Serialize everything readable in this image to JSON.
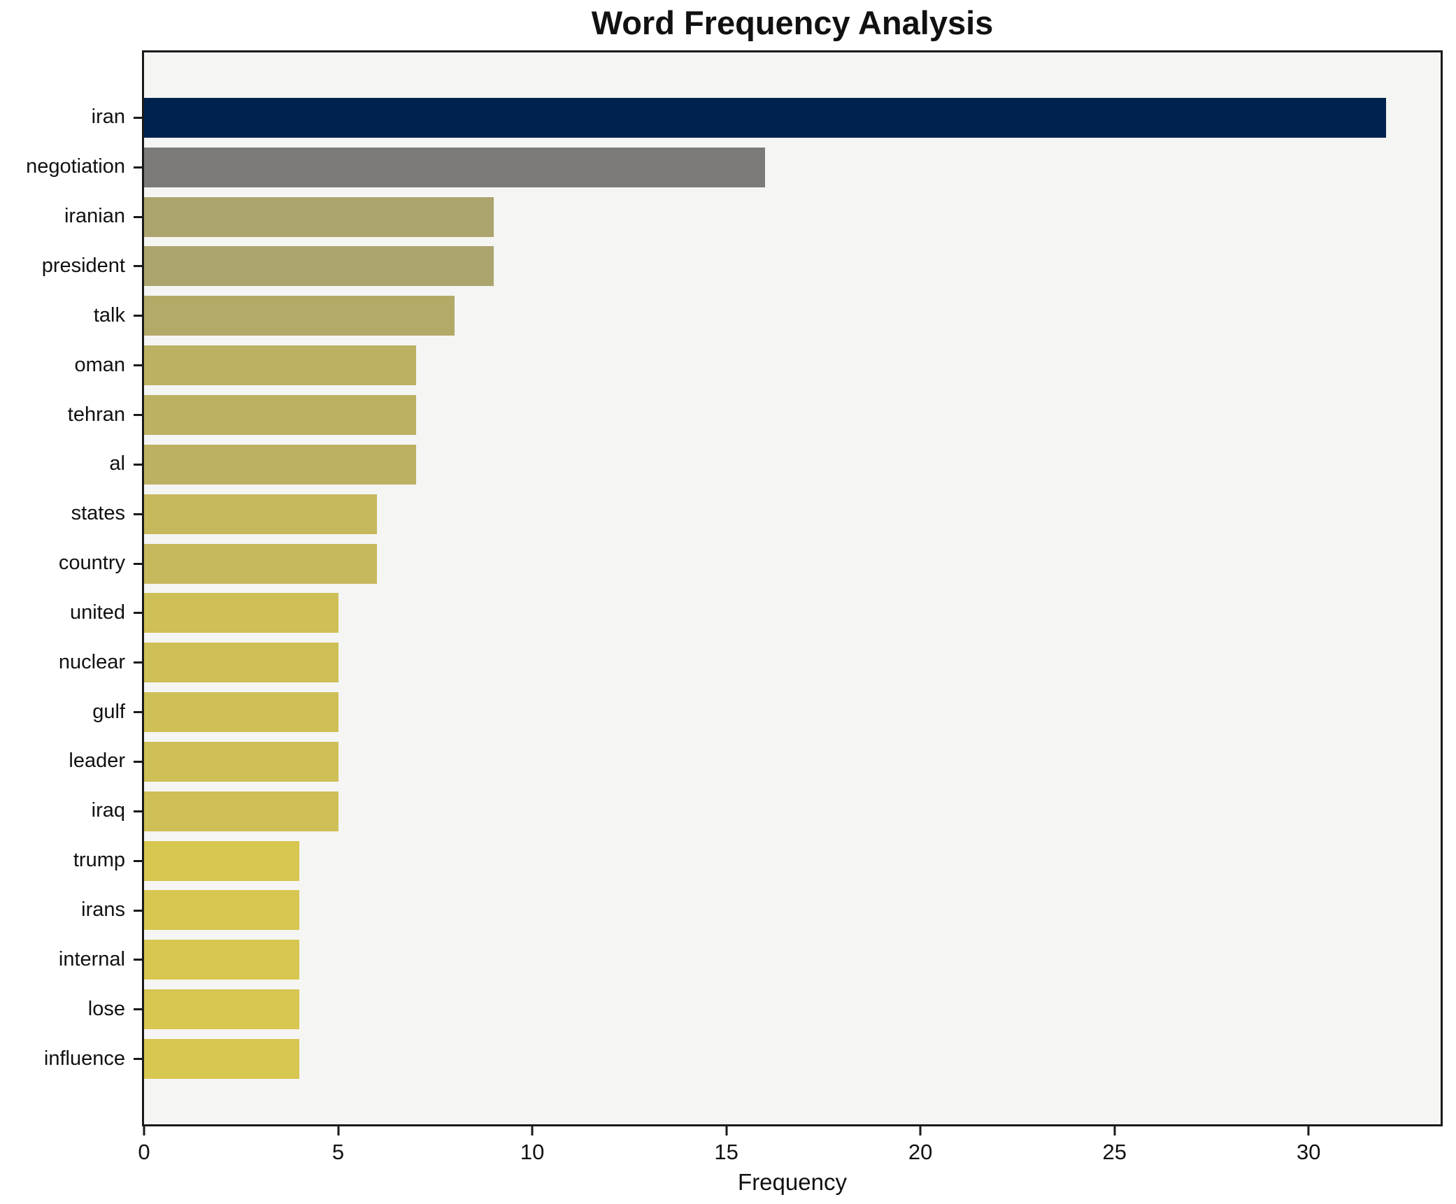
{
  "chart_data": {
    "type": "bar",
    "orientation": "horizontal",
    "title": "Word Frequency Analysis",
    "xlabel": "Frequency",
    "ylabel": "",
    "categories": [
      "iran",
      "negotiation",
      "iranian",
      "president",
      "talk",
      "oman",
      "tehran",
      "al",
      "states",
      "country",
      "united",
      "nuclear",
      "gulf",
      "leader",
      "iraq",
      "trump",
      "irans",
      "internal",
      "lose",
      "influence"
    ],
    "values": [
      32,
      16,
      9,
      9,
      8,
      7,
      7,
      7,
      6,
      6,
      5,
      5,
      5,
      5,
      5,
      4,
      4,
      4,
      4,
      4
    ],
    "bar_colors": [
      "#00224e",
      "#7c7b78",
      "#aca46d",
      "#aca46d",
      "#b4aa68",
      "#bcb163",
      "#bcb163",
      "#bcb163",
      "#c5b85d",
      "#c5b85d",
      "#cebf56",
      "#cebf56",
      "#cebf56",
      "#cebf56",
      "#cebf56",
      "#d7c64f",
      "#d7c64f",
      "#d7c64f",
      "#d7c64f",
      "#d7c64f"
    ],
    "xticks": [
      0,
      5,
      10,
      15,
      20,
      25,
      30
    ],
    "xlim": [
      0,
      33.4
    ],
    "grid": false,
    "legend": "none",
    "plot_bg": "#f5f5f3",
    "fig_bg": "#ffffff",
    "spine_color": "#1a1a1a",
    "text_color": "#111111"
  }
}
